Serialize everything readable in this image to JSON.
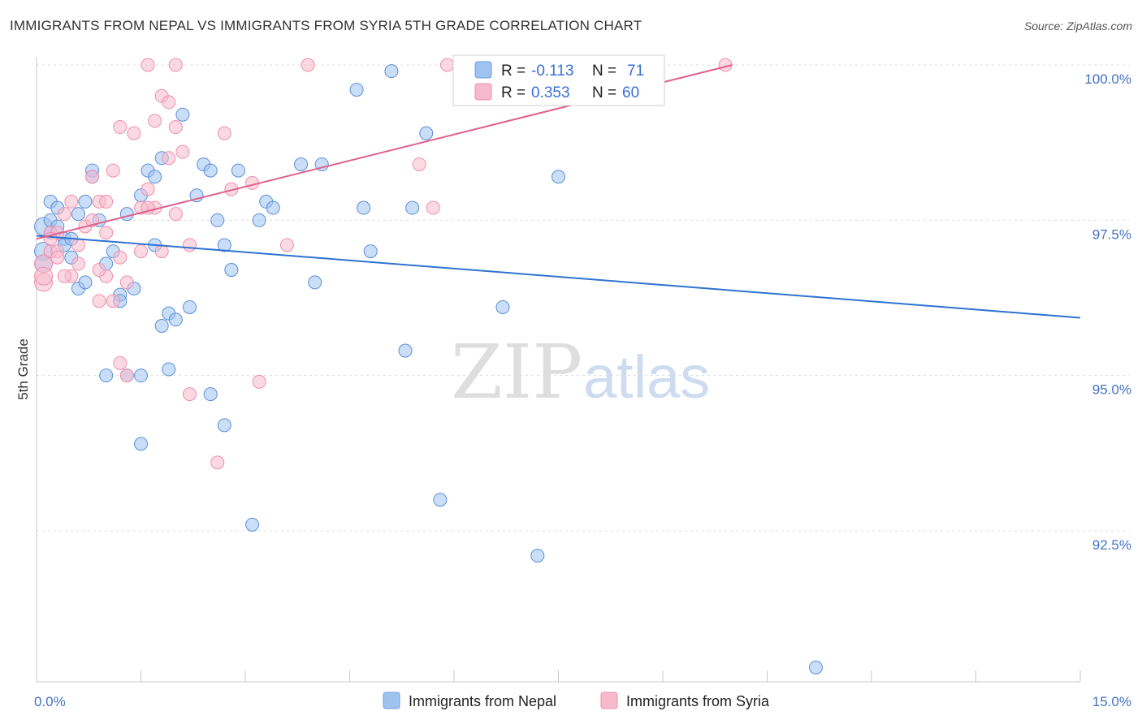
{
  "title": "IMMIGRANTS FROM NEPAL VS IMMIGRANTS FROM SYRIA 5TH GRADE CORRELATION CHART",
  "source": "Source: ZipAtlas.com",
  "watermark": {
    "zip": "ZIP",
    "atlas": "atlas"
  },
  "legend": {
    "r_label": "R =",
    "n_label": "N =",
    "rows": [
      {
        "r": "-0.113",
        "n": "71",
        "color": "#9ec3f0",
        "stroke": "#6d9de0"
      },
      {
        "r": "0.353",
        "n": "60",
        "color": "#f7b9cc",
        "stroke": "#ee8fad"
      }
    ]
  },
  "bottom_legend": [
    "Immigrants from Nepal",
    "Immigrants from Syria"
  ],
  "chart_data": {
    "type": "scatter",
    "title": "IMMIGRANTS FROM NEPAL VS IMMIGRANTS FROM SYRIA 5TH GRADE CORRELATION CHART",
    "xlabel": "",
    "ylabel": "5th Grade",
    "xlim": [
      0,
      15
    ],
    "ylim": [
      90.5,
      100.2
    ],
    "x_tick_labels": [
      "0.0%",
      "15.0%"
    ],
    "y_ticks": [
      92.5,
      95.0,
      97.5,
      100.0
    ],
    "y_tick_labels": [
      "92.5%",
      "95.0%",
      "97.5%",
      "100.0%"
    ],
    "grid": true,
    "legend_position": "top-center",
    "series": [
      {
        "name": "Immigrants from Nepal",
        "color": "#9ec3f0",
        "stroke": "#5b8fd8",
        "trend": {
          "x": [
            0,
            15
          ],
          "y": [
            97.25,
            95.93
          ],
          "color": "#2f72d0"
        },
        "points": [
          [
            0.1,
            97.4
          ],
          [
            0.1,
            97.0
          ],
          [
            0.1,
            96.8
          ],
          [
            0.2,
            97.5
          ],
          [
            0.2,
            97.8
          ],
          [
            0.3,
            97.7
          ],
          [
            0.3,
            97.4
          ],
          [
            0.4,
            97.2
          ],
          [
            0.4,
            97.1
          ],
          [
            0.5,
            96.9
          ],
          [
            0.6,
            97.6
          ],
          [
            0.6,
            96.4
          ],
          [
            0.7,
            97.8
          ],
          [
            0.8,
            98.3
          ],
          [
            0.8,
            98.2
          ],
          [
            0.9,
            97.5
          ],
          [
            1.0,
            96.8
          ],
          [
            1.1,
            97.0
          ],
          [
            1.2,
            96.3
          ],
          [
            1.3,
            97.6
          ],
          [
            1.5,
            97.9
          ],
          [
            1.6,
            98.3
          ],
          [
            1.7,
            98.2
          ],
          [
            1.7,
            97.1
          ],
          [
            1.8,
            98.5
          ],
          [
            1.9,
            96.0
          ],
          [
            2.0,
            95.9
          ],
          [
            2.1,
            99.2
          ],
          [
            2.2,
            96.1
          ],
          [
            2.3,
            97.9
          ],
          [
            2.4,
            98.4
          ],
          [
            2.5,
            98.3
          ],
          [
            2.6,
            97.5
          ],
          [
            2.7,
            97.1
          ],
          [
            2.8,
            96.7
          ],
          [
            2.9,
            98.3
          ],
          [
            3.2,
            97.5
          ],
          [
            3.3,
            97.8
          ],
          [
            3.4,
            97.7
          ],
          [
            3.8,
            98.4
          ],
          [
            4.0,
            96.5
          ],
          [
            4.1,
            98.4
          ],
          [
            4.6,
            99.6
          ],
          [
            4.7,
            97.7
          ],
          [
            4.8,
            97.0
          ],
          [
            5.1,
            99.9
          ],
          [
            5.3,
            95.4
          ],
          [
            5.4,
            97.7
          ],
          [
            5.6,
            98.9
          ],
          [
            5.8,
            93.0
          ],
          [
            6.1,
            100.0
          ],
          [
            6.4,
            100.0
          ],
          [
            6.7,
            96.1
          ],
          [
            7.0,
            99.9
          ],
          [
            7.2,
            92.1
          ],
          [
            7.5,
            98.2
          ],
          [
            1.0,
            95.0
          ],
          [
            1.3,
            95.0
          ],
          [
            1.5,
            95.0
          ],
          [
            1.5,
            93.9
          ],
          [
            1.9,
            95.1
          ],
          [
            2.5,
            94.7
          ],
          [
            2.7,
            94.2
          ],
          [
            3.1,
            92.6
          ],
          [
            11.2,
            90.3
          ],
          [
            0.5,
            97.2
          ],
          [
            0.2,
            97.3
          ],
          [
            1.4,
            96.4
          ],
          [
            1.2,
            96.2
          ],
          [
            0.7,
            96.5
          ],
          [
            1.8,
            95.8
          ]
        ]
      },
      {
        "name": "Immigrants from Syria",
        "color": "#f7b9cc",
        "stroke": "#ee8fad",
        "trend": {
          "x": [
            0,
            10.0
          ],
          "y": [
            97.2,
            100.0
          ],
          "color": "#e0608a"
        },
        "points": [
          [
            0.1,
            96.5
          ],
          [
            0.1,
            96.8
          ],
          [
            0.2,
            97.3
          ],
          [
            0.2,
            97.0
          ],
          [
            0.3,
            97.3
          ],
          [
            0.4,
            97.6
          ],
          [
            0.5,
            96.6
          ],
          [
            0.5,
            97.8
          ],
          [
            0.6,
            96.8
          ],
          [
            0.6,
            97.1
          ],
          [
            0.7,
            97.4
          ],
          [
            0.8,
            98.2
          ],
          [
            0.9,
            97.8
          ],
          [
            1.0,
            97.3
          ],
          [
            1.0,
            96.6
          ],
          [
            1.1,
            98.3
          ],
          [
            1.1,
            96.2
          ],
          [
            1.2,
            99.0
          ],
          [
            1.3,
            96.5
          ],
          [
            1.4,
            98.9
          ],
          [
            1.5,
            97.7
          ],
          [
            1.6,
            98.0
          ],
          [
            1.7,
            97.7
          ],
          [
            1.7,
            99.1
          ],
          [
            1.8,
            99.5
          ],
          [
            1.9,
            99.4
          ],
          [
            1.9,
            98.5
          ],
          [
            2.0,
            99.0
          ],
          [
            2.0,
            97.6
          ],
          [
            2.1,
            98.6
          ],
          [
            2.2,
            97.1
          ],
          [
            1.8,
            97.0
          ],
          [
            1.5,
            97.0
          ],
          [
            1.2,
            96.9
          ],
          [
            0.9,
            96.7
          ],
          [
            2.8,
            98.0
          ],
          [
            3.1,
            98.1
          ],
          [
            3.6,
            97.1
          ],
          [
            2.7,
            98.9
          ],
          [
            1.6,
            100.0
          ],
          [
            2.0,
            100.0
          ],
          [
            3.9,
            100.0
          ],
          [
            5.9,
            100.0
          ],
          [
            9.9,
            100.0
          ],
          [
            5.5,
            98.4
          ],
          [
            5.7,
            97.7
          ],
          [
            1.2,
            95.2
          ],
          [
            1.3,
            95.0
          ],
          [
            2.2,
            94.7
          ],
          [
            2.6,
            93.6
          ],
          [
            3.2,
            94.9
          ],
          [
            0.4,
            96.6
          ],
          [
            0.3,
            97.0
          ],
          [
            0.2,
            97.2
          ],
          [
            0.8,
            97.5
          ],
          [
            0.9,
            96.2
          ],
          [
            1.6,
            97.7
          ],
          [
            0.1,
            96.6
          ],
          [
            0.3,
            96.9
          ],
          [
            1.0,
            97.8
          ]
        ]
      }
    ]
  }
}
